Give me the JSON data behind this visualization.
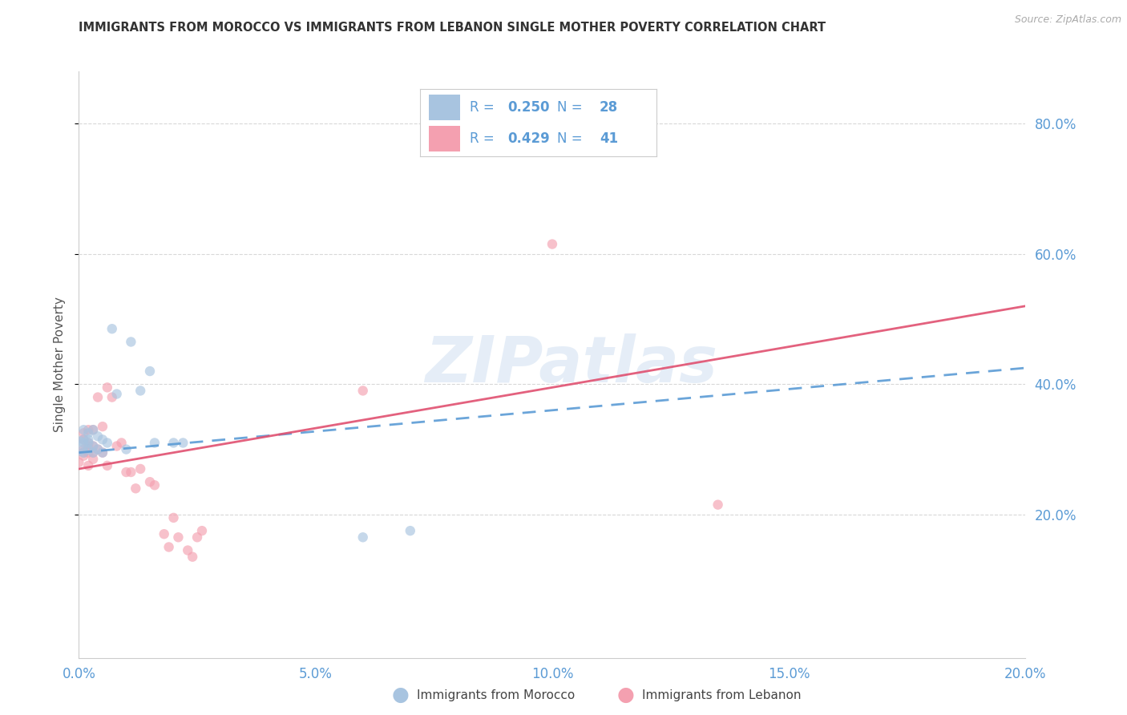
{
  "title": "IMMIGRANTS FROM MOROCCO VS IMMIGRANTS FROM LEBANON SINGLE MOTHER POVERTY CORRELATION CHART",
  "source": "Source: ZipAtlas.com",
  "ylabel": "Single Mother Poverty",
  "legend_labels": [
    "Immigrants from Morocco",
    "Immigrants from Lebanon"
  ],
  "r_morocco": 0.25,
  "n_morocco": 28,
  "r_lebanon": 0.429,
  "n_lebanon": 41,
  "xlim": [
    0.0,
    0.2
  ],
  "ylim": [
    -0.02,
    0.88
  ],
  "ytick_vals": [
    0.2,
    0.4,
    0.6,
    0.8
  ],
  "xtick_vals": [
    0.0,
    0.05,
    0.1,
    0.15,
    0.2
  ],
  "morocco_color": "#a8c4e0",
  "lebanon_color": "#f4a0b0",
  "morocco_line_color": "#5b9bd5",
  "lebanon_line_color": "#e05070",
  "background_color": "#ffffff",
  "grid_color": "#d8d8d8",
  "title_color": "#333333",
  "axis_tick_color": "#5b9bd5",
  "watermark_text": "ZIPatlas",
  "morocco_x": [
    0.0,
    0.001,
    0.001,
    0.001,
    0.001,
    0.002,
    0.002,
    0.002,
    0.002,
    0.003,
    0.003,
    0.003,
    0.004,
    0.004,
    0.005,
    0.005,
    0.006,
    0.007,
    0.008,
    0.01,
    0.011,
    0.013,
    0.015,
    0.016,
    0.02,
    0.022,
    0.06,
    0.07
  ],
  "morocco_y": [
    0.305,
    0.31,
    0.315,
    0.33,
    0.295,
    0.31,
    0.3,
    0.325,
    0.315,
    0.295,
    0.33,
    0.305,
    0.32,
    0.3,
    0.315,
    0.295,
    0.31,
    0.485,
    0.385,
    0.3,
    0.465,
    0.39,
    0.42,
    0.31,
    0.31,
    0.31,
    0.165,
    0.175
  ],
  "morocco_size": [
    300,
    80,
    80,
    80,
    80,
    80,
    80,
    80,
    80,
    80,
    80,
    80,
    80,
    80,
    80,
    80,
    80,
    80,
    80,
    80,
    80,
    80,
    80,
    80,
    80,
    80,
    80,
    80
  ],
  "lebanon_x": [
    0.0,
    0.001,
    0.001,
    0.001,
    0.001,
    0.001,
    0.002,
    0.002,
    0.002,
    0.002,
    0.002,
    0.003,
    0.003,
    0.003,
    0.003,
    0.004,
    0.004,
    0.005,
    0.005,
    0.006,
    0.006,
    0.007,
    0.008,
    0.009,
    0.01,
    0.011,
    0.012,
    0.013,
    0.015,
    0.016,
    0.018,
    0.019,
    0.02,
    0.021,
    0.023,
    0.024,
    0.025,
    0.026,
    0.06,
    0.1,
    0.135
  ],
  "lebanon_y": [
    0.28,
    0.29,
    0.3,
    0.315,
    0.325,
    0.295,
    0.295,
    0.305,
    0.275,
    0.33,
    0.31,
    0.295,
    0.305,
    0.285,
    0.33,
    0.3,
    0.38,
    0.295,
    0.335,
    0.275,
    0.395,
    0.38,
    0.305,
    0.31,
    0.265,
    0.265,
    0.24,
    0.27,
    0.25,
    0.245,
    0.17,
    0.15,
    0.195,
    0.165,
    0.145,
    0.135,
    0.165,
    0.175,
    0.39,
    0.615,
    0.215
  ],
  "lebanon_size": [
    80,
    80,
    80,
    80,
    80,
    80,
    80,
    80,
    80,
    80,
    80,
    80,
    80,
    80,
    80,
    80,
    80,
    80,
    80,
    80,
    80,
    80,
    80,
    80,
    80,
    80,
    80,
    80,
    80,
    80,
    80,
    80,
    80,
    80,
    80,
    80,
    80,
    80,
    80,
    80,
    80
  ],
  "morocco_trend_x0": 0.0,
  "morocco_trend_y0": 0.295,
  "morocco_trend_x1": 0.2,
  "morocco_trend_y1": 0.425,
  "lebanon_trend_x0": 0.0,
  "lebanon_trend_y0": 0.27,
  "lebanon_trend_x1": 0.2,
  "lebanon_trend_y1": 0.52
}
